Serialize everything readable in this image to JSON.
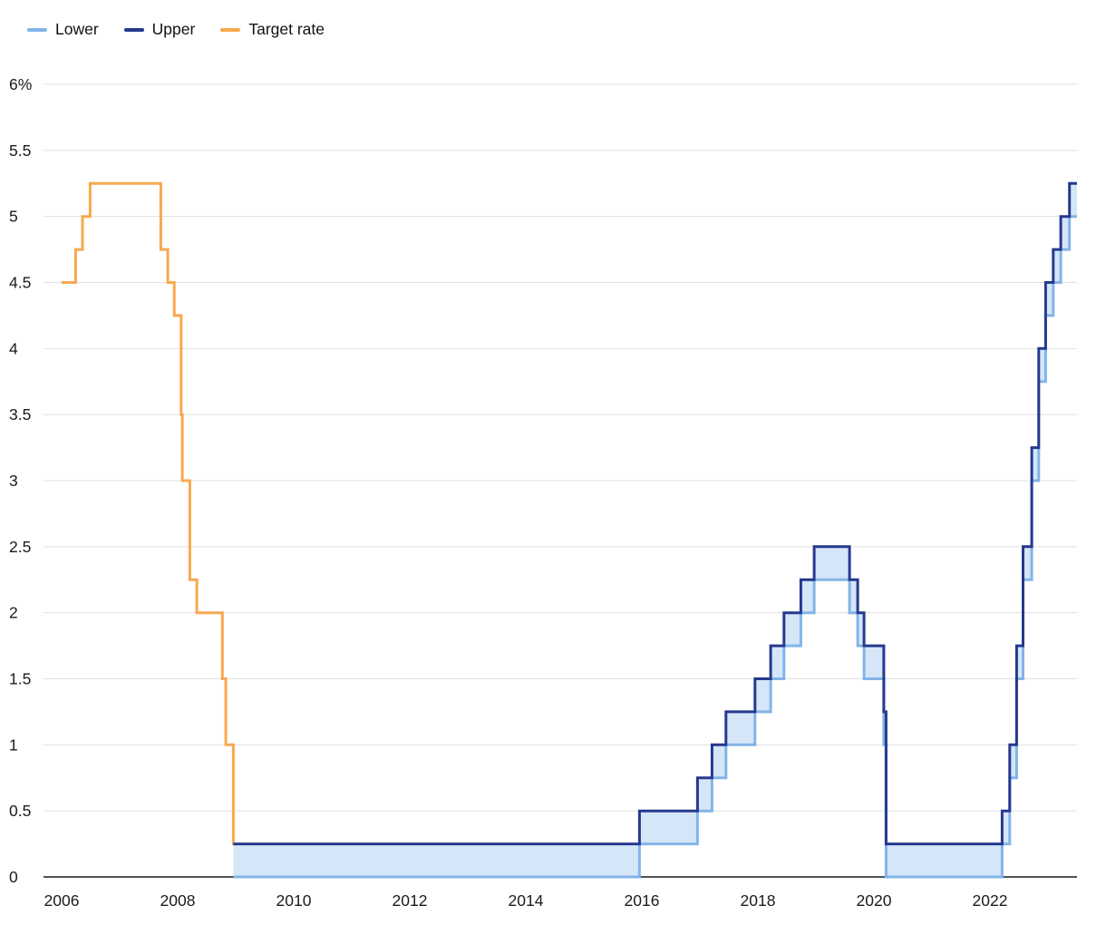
{
  "legend": {
    "items": [
      {
        "label": "Lower",
        "color": "#82B4E8"
      },
      {
        "label": "Upper",
        "color": "#26398E"
      },
      {
        "label": "Target rate",
        "color": "#F7A94F"
      }
    ]
  },
  "chart_data": {
    "type": "line",
    "subtype": "step",
    "title": "",
    "xlabel": "",
    "ylabel": "%",
    "ylim": [
      0,
      6
    ],
    "xlim": [
      2006,
      2023.5
    ],
    "grid": true,
    "legend_position": "top-left",
    "colors": {
      "grid": "#DEE0E4",
      "axis": "#17181C",
      "text": "#1B1B1B",
      "band_fill": "#D5E6F8"
    },
    "x_ticks": [
      {
        "v": 2006,
        "label": "2006"
      },
      {
        "v": 2008,
        "label": "2008"
      },
      {
        "v": 2010,
        "label": "2010"
      },
      {
        "v": 2012,
        "label": "2012"
      },
      {
        "v": 2014,
        "label": "2014"
      },
      {
        "v": 2016,
        "label": "2016"
      },
      {
        "v": 2018,
        "label": "2018"
      },
      {
        "v": 2020,
        "label": "2020"
      },
      {
        "v": 2022,
        "label": "2022"
      }
    ],
    "y_ticks": [
      {
        "v": 0,
        "label": "0"
      },
      {
        "v": 0.5,
        "label": "0.5"
      },
      {
        "v": 1,
        "label": "1"
      },
      {
        "v": 1.5,
        "label": "1.5"
      },
      {
        "v": 2,
        "label": "2"
      },
      {
        "v": 2.5,
        "label": "2.5"
      },
      {
        "v": 3,
        "label": "3"
      },
      {
        "v": 3.5,
        "label": "3.5"
      },
      {
        "v": 4,
        "label": "4"
      },
      {
        "v": 4.5,
        "label": "4.5"
      },
      {
        "v": 5,
        "label": "5"
      },
      {
        "v": 5.5,
        "label": "5.5"
      },
      {
        "v": 6,
        "label": "6%"
      }
    ],
    "band": {
      "lower": "Lower",
      "upper": "Upper"
    },
    "series": [
      {
        "name": "Target rate",
        "color": "#F7A94F",
        "width": 3,
        "x_end": 2008.98,
        "points": [
          [
            2006.0,
            4.5
          ],
          [
            2006.24,
            4.75
          ],
          [
            2006.36,
            5.0
          ],
          [
            2006.49,
            5.25
          ],
          [
            2007.71,
            4.75
          ],
          [
            2007.83,
            4.5
          ],
          [
            2007.94,
            4.25
          ],
          [
            2008.06,
            3.5
          ],
          [
            2008.08,
            3.0
          ],
          [
            2008.21,
            2.25
          ],
          [
            2008.33,
            2.0
          ],
          [
            2008.77,
            1.5
          ],
          [
            2008.83,
            1.0
          ],
          [
            2008.96,
            0.25
          ]
        ]
      },
      {
        "name": "Lower",
        "color": "#82B4E8",
        "width": 3,
        "x_end": 2023.5,
        "points": [
          [
            2008.96,
            0
          ],
          [
            2015.96,
            0.25
          ],
          [
            2016.96,
            0.5
          ],
          [
            2017.21,
            0.75
          ],
          [
            2017.45,
            1.0
          ],
          [
            2017.95,
            1.25
          ],
          [
            2018.22,
            1.5
          ],
          [
            2018.45,
            1.75
          ],
          [
            2018.74,
            2.0
          ],
          [
            2018.97,
            2.25
          ],
          [
            2019.58,
            2.0
          ],
          [
            2019.72,
            1.75
          ],
          [
            2019.83,
            1.5
          ],
          [
            2020.17,
            1.0
          ],
          [
            2020.21,
            0
          ],
          [
            2022.21,
            0.25
          ],
          [
            2022.34,
            0.75
          ],
          [
            2022.46,
            1.5
          ],
          [
            2022.57,
            2.25
          ],
          [
            2022.72,
            3.0
          ],
          [
            2022.84,
            3.75
          ],
          [
            2022.96,
            4.25
          ],
          [
            2023.09,
            4.5
          ],
          [
            2023.22,
            4.75
          ],
          [
            2023.37,
            5.0
          ]
        ]
      },
      {
        "name": "Upper",
        "color": "#26398E",
        "width": 3,
        "x_end": 2023.5,
        "points": [
          [
            2008.96,
            0.25
          ],
          [
            2015.96,
            0.5
          ],
          [
            2016.96,
            0.75
          ],
          [
            2017.21,
            1.0
          ],
          [
            2017.45,
            1.25
          ],
          [
            2017.95,
            1.5
          ],
          [
            2018.22,
            1.75
          ],
          [
            2018.45,
            2.0
          ],
          [
            2018.74,
            2.25
          ],
          [
            2018.97,
            2.5
          ],
          [
            2019.58,
            2.25
          ],
          [
            2019.72,
            2.0
          ],
          [
            2019.83,
            1.75
          ],
          [
            2020.17,
            1.25
          ],
          [
            2020.21,
            0.25
          ],
          [
            2022.21,
            0.5
          ],
          [
            2022.34,
            1.0
          ],
          [
            2022.46,
            1.75
          ],
          [
            2022.57,
            2.5
          ],
          [
            2022.72,
            3.25
          ],
          [
            2022.84,
            4.0
          ],
          [
            2022.96,
            4.5
          ],
          [
            2023.09,
            4.75
          ],
          [
            2023.22,
            5.0
          ],
          [
            2023.37,
            5.25
          ]
        ]
      }
    ]
  }
}
